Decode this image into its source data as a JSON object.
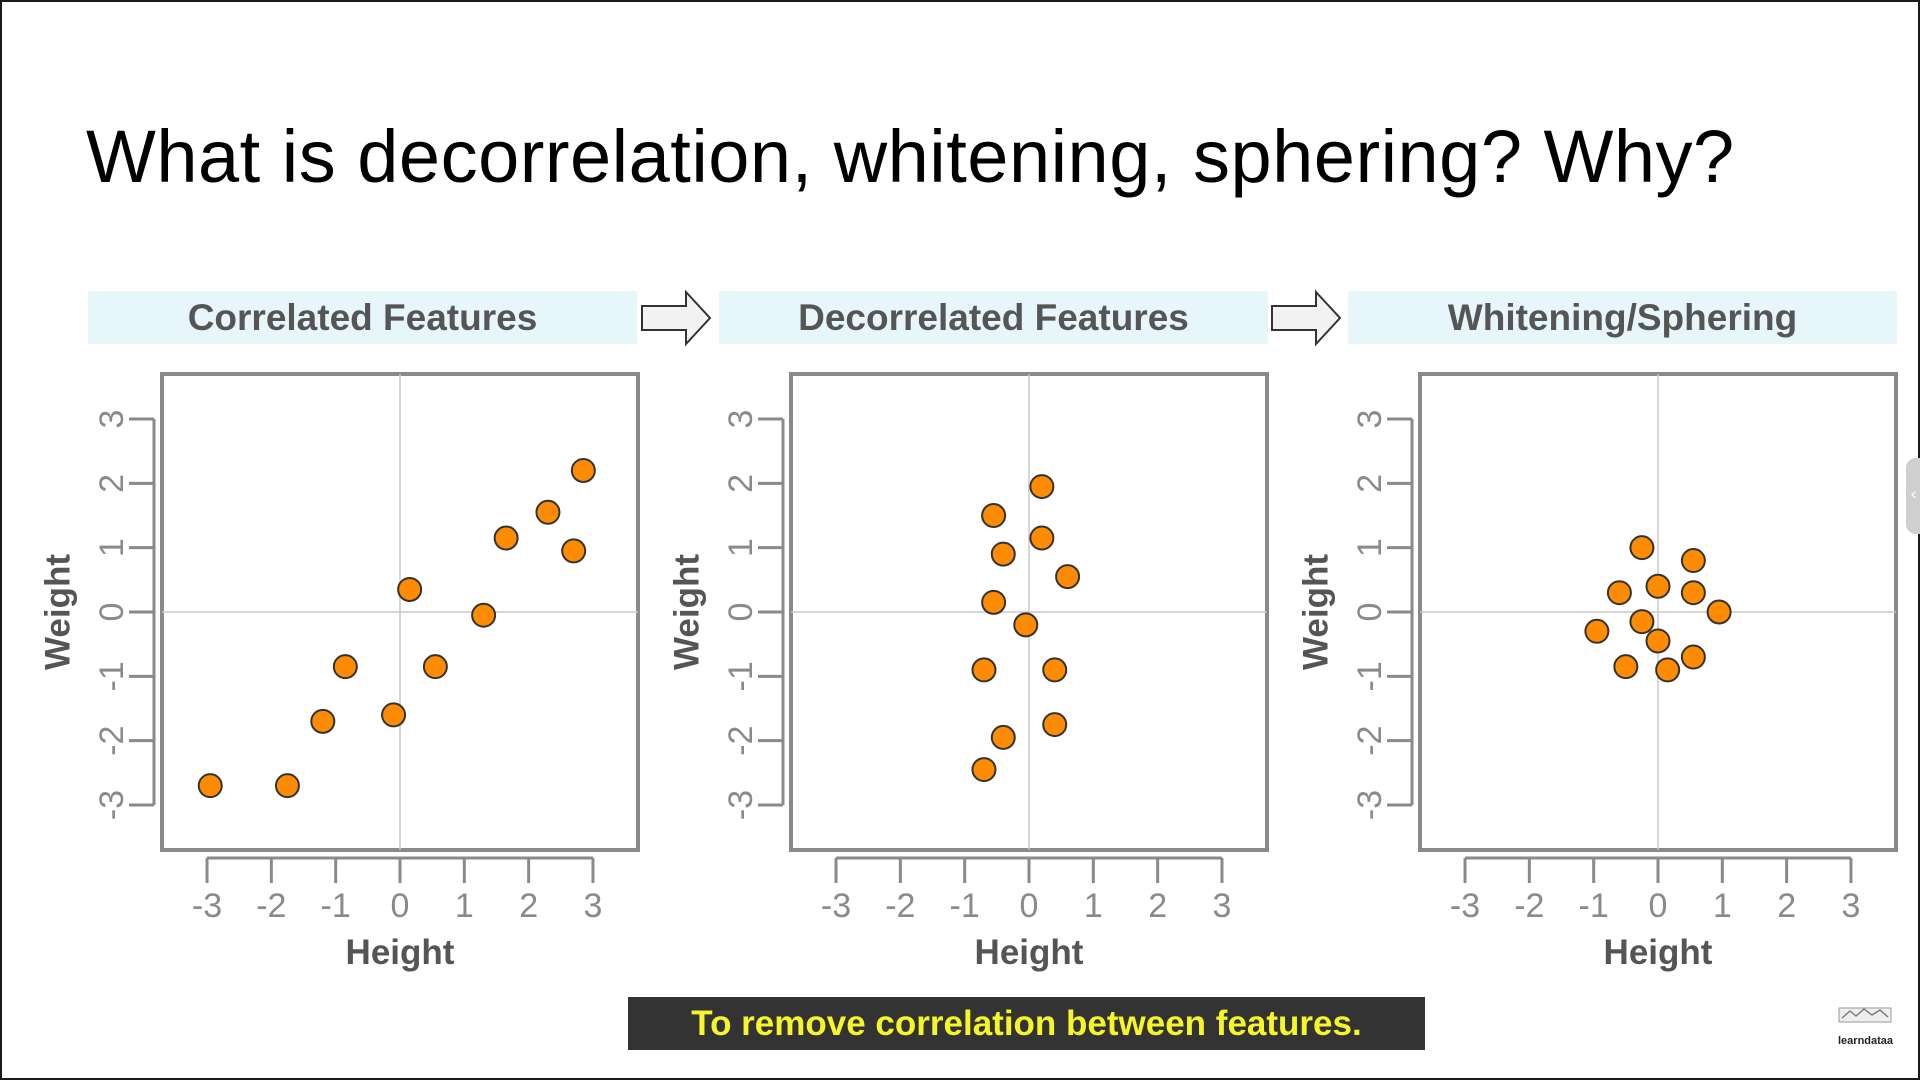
{
  "slide": {
    "title": "What is decorrelation, whitening, sphering? Why?",
    "caption": "To remove correlation between features.",
    "logo_text": "learndataa"
  },
  "colors": {
    "point_fill": "#ff8c00",
    "point_stroke": "#333333",
    "header_bg": "#e6f6fb",
    "caption_bg": "#333333",
    "caption_text": "#f5f52a"
  },
  "icons": {
    "arrow": "right-arrow-icon",
    "side_tab": "chevron-left-icon"
  },
  "chart_data": [
    {
      "type": "scatter",
      "title": "Correlated Features",
      "xlabel": "Height",
      "ylabel": "Weight",
      "xlim": [
        -3.7,
        3.7
      ],
      "ylim": [
        -3.7,
        3.7
      ],
      "xticks": [
        -3,
        -2,
        -1,
        0,
        1,
        2,
        3
      ],
      "yticks": [
        -3,
        -2,
        -1,
        0,
        1,
        2,
        3
      ],
      "grid": "zero-lines",
      "points": [
        {
          "x": -2.95,
          "y": -2.7
        },
        {
          "x": -1.75,
          "y": -2.7
        },
        {
          "x": -1.2,
          "y": -1.7
        },
        {
          "x": -0.85,
          "y": -0.85
        },
        {
          "x": -0.1,
          "y": -1.6
        },
        {
          "x": 0.15,
          "y": 0.35
        },
        {
          "x": 0.55,
          "y": -0.85
        },
        {
          "x": 1.3,
          "y": -0.05
        },
        {
          "x": 1.65,
          "y": 1.15
        },
        {
          "x": 2.3,
          "y": 1.55
        },
        {
          "x": 2.7,
          "y": 0.95
        },
        {
          "x": 2.85,
          "y": 2.2
        }
      ]
    },
    {
      "type": "scatter",
      "title": "Decorrelated Features",
      "xlabel": "Height",
      "ylabel": "Weight",
      "xlim": [
        -3.7,
        3.7
      ],
      "ylim": [
        -3.7,
        3.7
      ],
      "xticks": [
        -3,
        -2,
        -1,
        0,
        1,
        2,
        3
      ],
      "yticks": [
        -3,
        -2,
        -1,
        0,
        1,
        2,
        3
      ],
      "grid": "zero-lines",
      "points": [
        {
          "x": 0.2,
          "y": 1.95
        },
        {
          "x": -0.55,
          "y": 1.5
        },
        {
          "x": 0.2,
          "y": 1.15
        },
        {
          "x": -0.4,
          "y": 0.9
        },
        {
          "x": 0.6,
          "y": 0.55
        },
        {
          "x": -0.55,
          "y": 0.15
        },
        {
          "x": -0.05,
          "y": -0.2
        },
        {
          "x": -0.7,
          "y": -0.9
        },
        {
          "x": 0.4,
          "y": -0.9
        },
        {
          "x": 0.4,
          "y": -1.75
        },
        {
          "x": -0.4,
          "y": -1.95
        },
        {
          "x": -0.7,
          "y": -2.45
        }
      ]
    },
    {
      "type": "scatter",
      "title": "Whitening/Sphering",
      "xlabel": "Height",
      "ylabel": "Weight",
      "xlim": [
        -3.7,
        3.7
      ],
      "ylim": [
        -3.7,
        3.7
      ],
      "xticks": [
        -3,
        -2,
        -1,
        0,
        1,
        2,
        3
      ],
      "yticks": [
        -3,
        -2,
        -1,
        0,
        1,
        2,
        3
      ],
      "grid": "zero-lines",
      "points": [
        {
          "x": -0.25,
          "y": 1.0
        },
        {
          "x": 0.55,
          "y": 0.8
        },
        {
          "x": -0.6,
          "y": 0.3
        },
        {
          "x": 0.0,
          "y": 0.4
        },
        {
          "x": 0.55,
          "y": 0.3
        },
        {
          "x": 0.95,
          "y": 0.0
        },
        {
          "x": -0.95,
          "y": -0.3
        },
        {
          "x": -0.25,
          "y": -0.15
        },
        {
          "x": 0.0,
          "y": -0.45
        },
        {
          "x": 0.55,
          "y": -0.7
        },
        {
          "x": -0.5,
          "y": -0.85
        },
        {
          "x": 0.15,
          "y": -0.9
        }
      ]
    }
  ]
}
